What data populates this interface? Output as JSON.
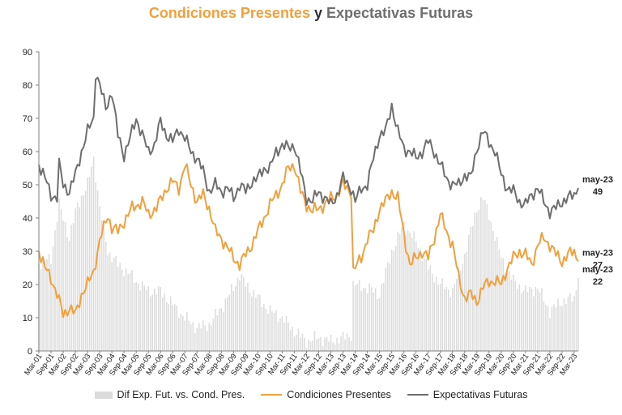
{
  "title": {
    "part1": "Condiciones Presentes",
    "part2": "y",
    "part3": "Expectativas Futuras"
  },
  "colors": {
    "presentes": "#f0a03c",
    "futuras": "#6e6e6e",
    "diferencia": "#dcdcdc",
    "axis": "#808080"
  },
  "chart_data": {
    "type": "line",
    "x_start": "Mar-01",
    "x_end": "May-23",
    "x_ticks": [
      "Mar-01",
      "Sep-01",
      "Mar-02",
      "Sep-02",
      "Mar-03",
      "Sep-03",
      "Mar-04",
      "Sep-04",
      "Mar-05",
      "Sep-05",
      "Mar-06",
      "Sep-06",
      "Mar-07",
      "Sep-07",
      "Mar-08",
      "Sep-08",
      "Mar-09",
      "Sep-09",
      "Mar-10",
      "Sep-10",
      "Mar-11",
      "Sep-11",
      "Mar-12",
      "Sep-12",
      "Mar-13",
      "Sep-13",
      "Mar-14",
      "Sep-14",
      "Mar-15",
      "Sep-15",
      "Mar-16",
      "Sep-16",
      "Mar-17",
      "Sep-17",
      "Mar-18",
      "Sep-18",
      "Mar-19",
      "Sep-19",
      "Mar-20",
      "Sep-20",
      "Mar-21",
      "Sep-21",
      "Mar-22",
      "Sep-22",
      "Mar-23"
    ],
    "ylim": [
      0,
      90
    ],
    "y_ticks": [
      0,
      10,
      20,
      30,
      40,
      50,
      60,
      70,
      80,
      90
    ],
    "grid": false,
    "legend_position": "bottom",
    "series": [
      {
        "name": "Dif Exp. Fut. vs. Cond. Pres.",
        "type": "bar",
        "keypoints": [
          [
            "2001-03",
            26
          ],
          [
            "2001-09",
            28
          ],
          [
            "2002-01",
            44
          ],
          [
            "2002-06",
            34
          ],
          [
            "2002-10",
            44
          ],
          [
            "2003-03",
            50
          ],
          [
            "2003-06",
            58
          ],
          [
            "2003-09",
            43
          ],
          [
            "2004-01",
            30
          ],
          [
            "2004-06",
            26
          ],
          [
            "2004-12",
            23
          ],
          [
            "2005-03",
            21
          ],
          [
            "2005-09",
            18
          ],
          [
            "2006-03",
            18
          ],
          [
            "2006-09",
            14
          ],
          [
            "2007-03",
            10
          ],
          [
            "2007-09",
            7
          ],
          [
            "2008-03",
            8
          ],
          [
            "2008-09",
            13
          ],
          [
            "2009-03",
            19
          ],
          [
            "2009-06",
            23
          ],
          [
            "2009-09",
            20
          ],
          [
            "2010-03",
            16
          ],
          [
            "2010-09",
            12
          ],
          [
            "2011-03",
            10
          ],
          [
            "2011-09",
            6
          ],
          [
            "2012-03",
            3
          ],
          [
            "2012-09",
            4
          ],
          [
            "2013-03",
            3
          ],
          [
            "2013-09",
            4
          ],
          [
            "2014-01",
            5
          ],
          [
            "2014-02",
            20
          ],
          [
            "2014-09",
            19
          ],
          [
            "2015-03",
            17
          ],
          [
            "2015-09",
            30
          ],
          [
            "2016-03",
            38
          ],
          [
            "2016-09",
            33
          ],
          [
            "2017-03",
            25
          ],
          [
            "2017-09",
            20
          ],
          [
            "2018-03",
            18
          ],
          [
            "2018-09",
            29
          ],
          [
            "2019-03",
            43
          ],
          [
            "2019-06",
            46
          ],
          [
            "2019-09",
            41
          ],
          [
            "2020-03",
            28
          ],
          [
            "2020-09",
            21
          ],
          [
            "2021-03",
            18
          ],
          [
            "2021-09",
            19
          ],
          [
            "2022-03",
            12
          ],
          [
            "2022-09",
            15
          ],
          [
            "2023-03",
            16
          ],
          [
            "2023-05",
            22
          ]
        ]
      },
      {
        "name": "Condiciones Presentes",
        "type": "line",
        "keypoints": [
          [
            "2001-03",
            30
          ],
          [
            "2001-06",
            25
          ],
          [
            "2001-09",
            22
          ],
          [
            "2001-12",
            17
          ],
          [
            "2002-03",
            11
          ],
          [
            "2002-06",
            13
          ],
          [
            "2002-09",
            11
          ],
          [
            "2002-12",
            17
          ],
          [
            "2003-03",
            20
          ],
          [
            "2003-06",
            24
          ],
          [
            "2003-09",
            33
          ],
          [
            "2004-01",
            41
          ],
          [
            "2004-03",
            37
          ],
          [
            "2004-06",
            36
          ],
          [
            "2004-09",
            39
          ],
          [
            "2005-01",
            43
          ],
          [
            "2005-06",
            45
          ],
          [
            "2005-09",
            41
          ],
          [
            "2006-01",
            43
          ],
          [
            "2006-06",
            49
          ],
          [
            "2006-09",
            51
          ],
          [
            "2006-12",
            49
          ],
          [
            "2007-03",
            56
          ],
          [
            "2007-06",
            50
          ],
          [
            "2007-09",
            45
          ],
          [
            "2007-12",
            47
          ],
          [
            "2008-03",
            43
          ],
          [
            "2008-06",
            36
          ],
          [
            "2008-09",
            34
          ],
          [
            "2008-12",
            31
          ],
          [
            "2009-03",
            28
          ],
          [
            "2009-06",
            26
          ],
          [
            "2009-09",
            29
          ],
          [
            "2009-12",
            32
          ],
          [
            "2010-03",
            36
          ],
          [
            "2010-06",
            40
          ],
          [
            "2010-09",
            44
          ],
          [
            "2010-12",
            47
          ],
          [
            "2011-03",
            50
          ],
          [
            "2011-06",
            55
          ],
          [
            "2011-09",
            56
          ],
          [
            "2011-12",
            48
          ],
          [
            "2012-03",
            44
          ],
          [
            "2012-06",
            42
          ],
          [
            "2012-09",
            43
          ],
          [
            "2012-12",
            44
          ],
          [
            "2013-03",
            46
          ],
          [
            "2013-06",
            47
          ],
          [
            "2013-09",
            50
          ],
          [
            "2014-01",
            48
          ],
          [
            "2014-02",
            24
          ],
          [
            "2014-06",
            28
          ],
          [
            "2014-09",
            34
          ],
          [
            "2014-12",
            36
          ],
          [
            "2015-03",
            43
          ],
          [
            "2015-06",
            45
          ],
          [
            "2015-09",
            48
          ],
          [
            "2015-12",
            46
          ],
          [
            "2016-03",
            35
          ],
          [
            "2016-06",
            26
          ],
          [
            "2016-09",
            28
          ],
          [
            "2016-12",
            30
          ],
          [
            "2017-03",
            28
          ],
          [
            "2017-06",
            34
          ],
          [
            "2017-09",
            41
          ],
          [
            "2017-12",
            36
          ],
          [
            "2018-03",
            32
          ],
          [
            "2018-06",
            22
          ],
          [
            "2018-09",
            16
          ],
          [
            "2018-12",
            17
          ],
          [
            "2019-03",
            15
          ],
          [
            "2019-06",
            19
          ],
          [
            "2019-09",
            21
          ],
          [
            "2019-12",
            21
          ],
          [
            "2020-03",
            20
          ],
          [
            "2020-06",
            25
          ],
          [
            "2020-09",
            28
          ],
          [
            "2020-12",
            30
          ],
          [
            "2021-03",
            29
          ],
          [
            "2021-06",
            26
          ],
          [
            "2021-09",
            32
          ],
          [
            "2021-12",
            34
          ],
          [
            "2022-03",
            32
          ],
          [
            "2022-06",
            29
          ],
          [
            "2022-09",
            27
          ],
          [
            "2022-12",
            29
          ],
          [
            "2023-03",
            30
          ],
          [
            "2023-05",
            27
          ]
        ]
      },
      {
        "name": "Expectativas Futuras",
        "type": "line",
        "keypoints": [
          [
            "2001-03",
            56
          ],
          [
            "2001-06",
            52
          ],
          [
            "2001-09",
            47
          ],
          [
            "2001-12",
            46
          ],
          [
            "2002-01",
            56
          ],
          [
            "2002-03",
            50
          ],
          [
            "2002-06",
            48
          ],
          [
            "2002-09",
            53
          ],
          [
            "2002-12",
            60
          ],
          [
            "2003-03",
            66
          ],
          [
            "2003-06",
            70
          ],
          [
            "2003-07",
            84
          ],
          [
            "2003-09",
            80
          ],
          [
            "2003-12",
            73
          ],
          [
            "2004-03",
            78
          ],
          [
            "2004-06",
            65
          ],
          [
            "2004-09",
            59
          ],
          [
            "2004-12",
            64
          ],
          [
            "2005-03",
            70
          ],
          [
            "2005-06",
            65
          ],
          [
            "2005-09",
            60
          ],
          [
            "2005-12",
            62
          ],
          [
            "2006-03",
            69
          ],
          [
            "2006-06",
            65
          ],
          [
            "2006-09",
            63
          ],
          [
            "2006-12",
            67
          ],
          [
            "2007-03",
            64
          ],
          [
            "2007-06",
            60
          ],
          [
            "2007-09",
            58
          ],
          [
            "2007-12",
            54
          ],
          [
            "2008-03",
            48
          ],
          [
            "2008-06",
            50
          ],
          [
            "2008-09",
            48
          ],
          [
            "2008-12",
            49
          ],
          [
            "2009-03",
            46
          ],
          [
            "2009-06",
            50
          ],
          [
            "2009-09",
            48
          ],
          [
            "2009-12",
            51
          ],
          [
            "2010-03",
            52
          ],
          [
            "2010-06",
            55
          ],
          [
            "2010-09",
            55
          ],
          [
            "2010-12",
            60
          ],
          [
            "2011-03",
            62
          ],
          [
            "2011-06",
            61
          ],
          [
            "2011-09",
            62
          ],
          [
            "2011-12",
            54
          ],
          [
            "2012-03",
            46
          ],
          [
            "2012-06",
            45
          ],
          [
            "2012-09",
            48
          ],
          [
            "2012-12",
            46
          ],
          [
            "2013-03",
            44
          ],
          [
            "2013-06",
            47
          ],
          [
            "2013-09",
            52
          ],
          [
            "2014-01",
            49
          ],
          [
            "2014-03",
            45
          ],
          [
            "2014-06",
            49
          ],
          [
            "2014-09",
            50
          ],
          [
            "2014-12",
            58
          ],
          [
            "2015-03",
            65
          ],
          [
            "2015-06",
            66
          ],
          [
            "2015-09",
            74
          ],
          [
            "2015-12",
            66
          ],
          [
            "2016-03",
            61
          ],
          [
            "2016-06",
            60
          ],
          [
            "2016-09",
            58
          ],
          [
            "2016-12",
            60
          ],
          [
            "2017-03",
            63
          ],
          [
            "2017-06",
            60
          ],
          [
            "2017-09",
            56
          ],
          [
            "2017-12",
            52
          ],
          [
            "2018-03",
            50
          ],
          [
            "2018-06",
            50
          ],
          [
            "2018-09",
            53
          ],
          [
            "2018-12",
            52
          ],
          [
            "2019-03",
            61
          ],
          [
            "2019-06",
            66
          ],
          [
            "2019-09",
            63
          ],
          [
            "2019-12",
            60
          ],
          [
            "2020-03",
            53
          ],
          [
            "2020-06",
            49
          ],
          [
            "2020-09",
            48
          ],
          [
            "2020-12",
            45
          ],
          [
            "2021-03",
            44
          ],
          [
            "2021-06",
            47
          ],
          [
            "2021-09",
            49
          ],
          [
            "2021-12",
            45
          ],
          [
            "2022-03",
            42
          ],
          [
            "2022-06",
            43
          ],
          [
            "2022-09",
            45
          ],
          [
            "2022-12",
            46
          ],
          [
            "2023-03",
            47
          ],
          [
            "2023-05",
            49
          ]
        ]
      }
    ],
    "end_labels": [
      {
        "period": "may-23",
        "value": "49"
      },
      {
        "period": "may-23",
        "value": "27"
      },
      {
        "period": "may-23",
        "value": "22"
      }
    ]
  },
  "legend": {
    "items": [
      "Dif Exp. Fut. vs. Cond. Pres.",
      "Condiciones Presentes",
      "Expectativas Futuras"
    ]
  }
}
